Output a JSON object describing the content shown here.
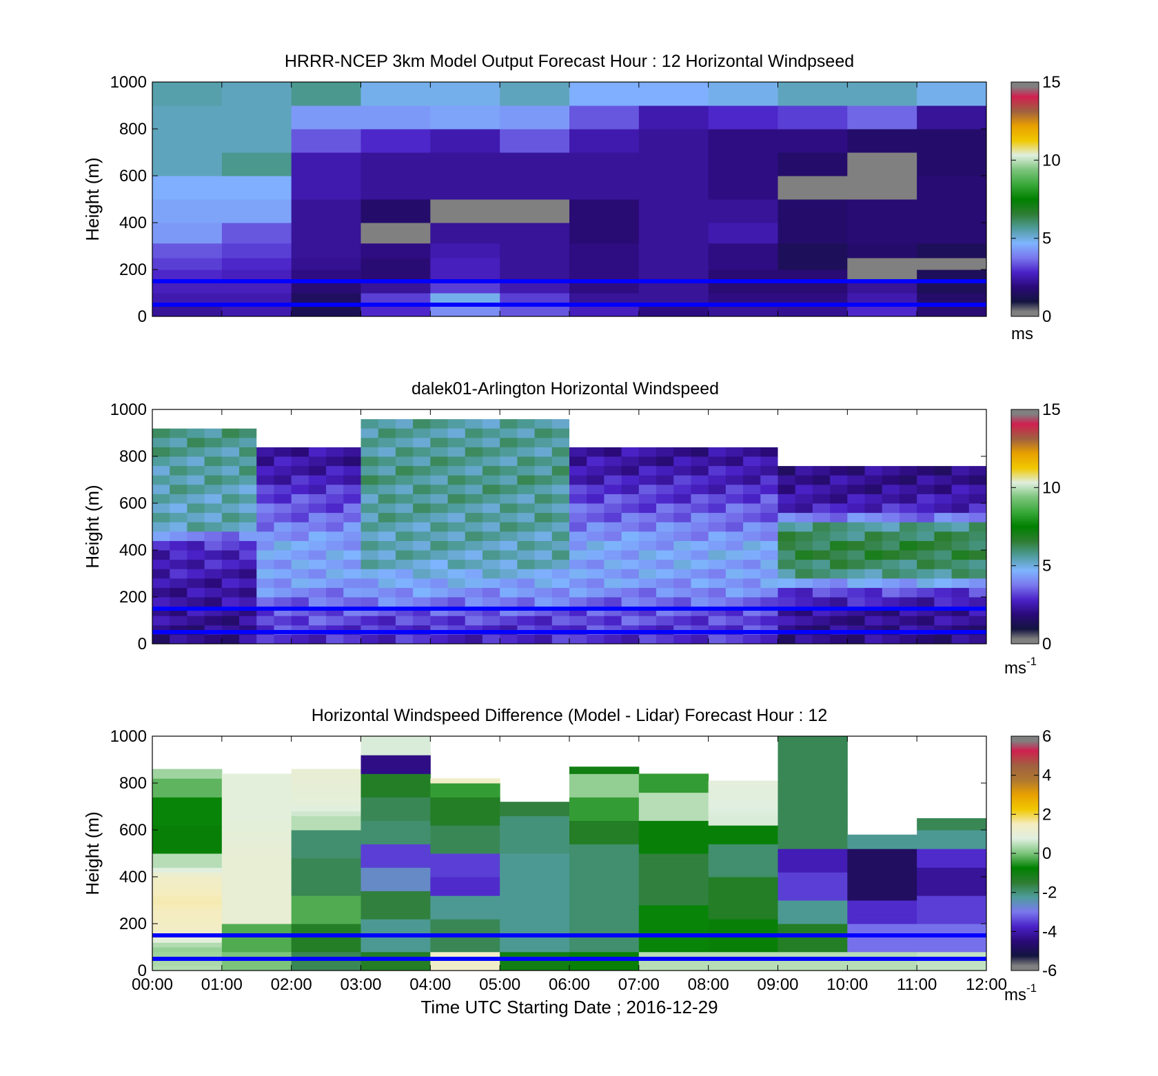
{
  "colors": {
    "ws_scale": [
      "#808080",
      "#141440",
      "#2a0a78",
      "#4a22c8",
      "#7a78ee",
      "#7fb4ff",
      "#4f9c9c",
      "#2e7d32",
      "#008000",
      "#3aa93a",
      "#7cc47c",
      "#e0efe0",
      "#f0c800",
      "#e8a000",
      "#a06040",
      "#d02050",
      "#808080"
    ],
    "diff_scale": [
      "#808080",
      "#141440",
      "#2a0a78",
      "#4a22c8",
      "#7a78ee",
      "#4f9c9c",
      "#2e7d32",
      "#008000",
      "#7cc47c",
      "#e0efe0",
      "#f5edc0",
      "#f0c800",
      "#e8a000",
      "#b07830",
      "#a06040",
      "#d02050",
      "#808080"
    ],
    "guide_line": "#0000ff",
    "missing": "#ffffff"
  },
  "xticks": [
    "00:00",
    "01:00",
    "02:00",
    "03:00",
    "04:00",
    "05:00",
    "06:00",
    "07:00",
    "08:00",
    "09:00",
    "10:00",
    "11:00",
    "12:00"
  ],
  "yticks": [
    "0",
    "200",
    "400",
    "600",
    "800",
    "1000"
  ],
  "chart_data": [
    {
      "type": "heatmap",
      "title": "HRRR-NCEP 3km Model Output   Forecast Hour : 12 Horizontal Windpseed",
      "ylabel": "Height (m)",
      "ylim": [
        0,
        1000
      ],
      "xlim": [
        0,
        12
      ],
      "colorbar": {
        "ticks": [
          "0",
          "5",
          "10",
          "15"
        ],
        "range": [
          0,
          15
        ],
        "unit_label": "ms"
      },
      "guide_lines_m": [
        150,
        50
      ],
      "heights_m": [
        25,
        75,
        125,
        175,
        225,
        275,
        350,
        450,
        550,
        650,
        750,
        850,
        950
      ],
      "columns_hours": [
        0,
        1,
        2,
        3,
        4,
        5,
        6,
        7,
        8,
        9,
        10,
        11
      ],
      "values": [
        [
          1.5,
          1.8,
          0.4,
          2.2,
          3.6,
          2.8,
          2.0,
          1.2,
          1.5,
          1.4,
          2.2,
          1.0
        ],
        [
          1.8,
          1.8,
          0.6,
          2.5,
          4.5,
          2.5,
          1.5,
          1.5,
          1.2,
          1.2,
          1.8,
          0.8
        ],
        [
          2.0,
          2.0,
          1.0,
          1.5,
          2.5,
          1.8,
          1.2,
          1.5,
          1.0,
          1.0,
          1.5,
          0.5
        ],
        [
          2.2,
          2.0,
          1.2,
          1.0,
          2.0,
          1.5,
          1.2,
          1.5,
          1.0,
          1.0,
          0.0,
          0.5
        ],
        [
          2.5,
          2.2,
          1.4,
          1.0,
          2.0,
          1.5,
          1.2,
          1.5,
          1.2,
          0.5,
          0.0,
          0.0
        ],
        [
          2.8,
          2.5,
          1.5,
          1.2,
          1.8,
          1.5,
          1.2,
          1.5,
          1.2,
          0.5,
          0.8,
          0.5
        ],
        [
          3.8,
          2.8,
          1.5,
          0.0,
          1.5,
          1.5,
          1.0,
          1.5,
          1.8,
          0.8,
          1.0,
          1.0
        ],
        [
          4.0,
          4.0,
          1.5,
          0.8,
          0.0,
          0.0,
          1.0,
          1.5,
          1.5,
          0.8,
          1.0,
          1.0
        ],
        [
          4.2,
          4.2,
          1.8,
          1.5,
          1.5,
          1.5,
          1.5,
          1.5,
          1.2,
          0.0,
          0.0,
          1.0
        ],
        [
          5.0,
          5.5,
          1.8,
          1.5,
          1.5,
          1.5,
          1.5,
          1.5,
          1.2,
          0.8,
          0.0,
          0.8
        ],
        [
          5.0,
          5.0,
          2.8,
          2.2,
          1.8,
          2.8,
          1.8,
          1.5,
          1.2,
          1.2,
          0.8,
          0.8
        ],
        [
          5.0,
          5.0,
          3.8,
          3.8,
          4.0,
          3.8,
          2.8,
          1.8,
          2.2,
          2.5,
          3.0,
          1.5
        ],
        [
          5.2,
          5.0,
          5.5,
          4.5,
          4.5,
          5.0,
          4.2,
          4.2,
          4.5,
          5.0,
          5.0,
          4.5
        ]
      ]
    },
    {
      "type": "heatmap",
      "title": "dalek01-Arlington  Horizontal Windspeed",
      "ylabel": "Height (m)",
      "ylim": [
        0,
        1000
      ],
      "xlim": [
        0,
        12
      ],
      "colorbar": {
        "ticks": [
          "0",
          "5",
          "10",
          "15"
        ],
        "range": [
          0,
          15
        ],
        "unit_label": "ms-1"
      },
      "guide_lines_m": [
        150,
        50
      ],
      "heights_m": [
        20,
        60,
        100,
        140,
        180,
        220,
        260,
        300,
        340,
        380,
        420,
        460,
        500,
        540,
        580,
        620,
        660,
        700,
        740,
        780,
        820,
        860,
        900,
        940,
        980
      ],
      "columns_hours": [
        0.0,
        0.25,
        0.5,
        0.75,
        1.0,
        1.25,
        1.5,
        1.75,
        2.0,
        2.25,
        2.5,
        2.75,
        3.0,
        3.25,
        3.5,
        3.75,
        4.0,
        4.25,
        4.5,
        4.75,
        5.0,
        5.25,
        5.5,
        5.75,
        6.0,
        6.25,
        6.5,
        6.75,
        7.0,
        7.25,
        7.5,
        7.75,
        8.0,
        8.25,
        8.5,
        8.75,
        9.0,
        9.25,
        9.5,
        9.75,
        10.0,
        10.25,
        10.5,
        10.75,
        11.0,
        11.25,
        11.5,
        11.75
      ],
      "profile_note_values": "piecewise profiles per time bin: [height_m, windspeed]; windspeed -1 = no data, 0 = gray flag",
      "profiles": {
        "early": [
          [
            0,
            1.2
          ],
          [
            150,
            1.5
          ],
          [
            300,
            1.8
          ],
          [
            400,
            2.0
          ],
          [
            450,
            3.0
          ],
          [
            500,
            5.0
          ],
          [
            700,
            5.2
          ],
          [
            880,
            5.5
          ],
          [
            940,
            -1
          ]
        ],
        "mid_a": [
          [
            0,
            2.0
          ],
          [
            100,
            2.5
          ],
          [
            200,
            3.5
          ],
          [
            300,
            4.5
          ],
          [
            350,
            5.0
          ],
          [
            700,
            5.5
          ],
          [
            900,
            5.3
          ],
          [
            1000,
            -1
          ]
        ],
        "mid_b": [
          [
            0,
            2.2
          ],
          [
            150,
            2.8
          ],
          [
            250,
            3.8
          ],
          [
            400,
            4.2
          ],
          [
            550,
            3.0
          ],
          [
            700,
            2.0
          ],
          [
            800,
            1.5
          ],
          [
            900,
            -1
          ]
        ],
        "late": [
          [
            0,
            1.2
          ],
          [
            150,
            1.5
          ],
          [
            220,
            2.5
          ],
          [
            300,
            5.5
          ],
          [
            400,
            6.5
          ],
          [
            500,
            5.5
          ],
          [
            560,
            2.2
          ],
          [
            650,
            1.5
          ],
          [
            750,
            1.2
          ],
          [
            800,
            -1
          ]
        ]
      }
    },
    {
      "type": "heatmap",
      "title": "Horizontal Windspeed Difference (Model - Lidar) Forecast Hour : 12",
      "ylabel": "Height (m)",
      "xlabel": "Time UTC  Starting Date ; 2016-12-29",
      "ylim": [
        0,
        1000
      ],
      "xlim": [
        0,
        12
      ],
      "colorbar": {
        "ticks": [
          "-6",
          "-4",
          "-2",
          "0",
          "2",
          "4",
          "6"
        ],
        "range": [
          -6,
          6
        ],
        "unit_label": "ms-1"
      },
      "guide_lines_m": [
        150,
        50
      ],
      "columns_hours": [
        0,
        1,
        2,
        3,
        4,
        5,
        6,
        7,
        8,
        9,
        10,
        11
      ],
      "tops_m": [
        860,
        840,
        860,
        1000,
        820,
        720,
        870,
        840,
        810,
        1000,
        580,
        650
      ],
      "profiles": [
        [
          [
            0,
            0.5
          ],
          [
            100,
            0.2
          ],
          [
            150,
            1.5
          ],
          [
            300,
            1.8
          ],
          [
            400,
            1.5
          ],
          [
            450,
            0.5
          ],
          [
            550,
            -1.0
          ],
          [
            700,
            -0.8
          ],
          [
            780,
            -0.2
          ],
          [
            860,
            0.3
          ]
        ],
        [
          [
            0,
            0.0
          ],
          [
            150,
            -0.3
          ],
          [
            250,
            1.2
          ],
          [
            450,
            1.2
          ],
          [
            650,
            1.0
          ],
          [
            840,
            1.0
          ]
        ],
        [
          [
            0,
            -2.0
          ],
          [
            150,
            -1.5
          ],
          [
            250,
            -0.3
          ],
          [
            400,
            -2.0
          ],
          [
            550,
            -2.2
          ],
          [
            650,
            0.5
          ],
          [
            700,
            1.0
          ],
          [
            840,
            1.2
          ]
        ],
        [
          [
            0,
            -1.5
          ],
          [
            150,
            -2.5
          ],
          [
            300,
            -1.8
          ],
          [
            400,
            -3.0
          ],
          [
            500,
            -4.0
          ],
          [
            600,
            -2.2
          ],
          [
            700,
            -2.0
          ],
          [
            800,
            -1.5
          ],
          [
            880,
            -5.0
          ],
          [
            950,
            0.8
          ],
          [
            1000,
            0.8
          ]
        ],
        [
          [
            0,
            1.5
          ],
          [
            150,
            -2.0
          ],
          [
            300,
            -2.5
          ],
          [
            350,
            -4.2
          ],
          [
            450,
            -4.0
          ],
          [
            550,
            -2.0
          ],
          [
            700,
            -1.5
          ],
          [
            780,
            -0.5
          ],
          [
            820,
            1.5
          ]
        ],
        [
          [
            0,
            -1.2
          ],
          [
            150,
            -2.5
          ],
          [
            400,
            -2.5
          ],
          [
            600,
            -2.3
          ],
          [
            720,
            -1.8
          ]
        ],
        [
          [
            0,
            -1.0
          ],
          [
            150,
            -2.2
          ],
          [
            500,
            -2.2
          ],
          [
            600,
            -1.5
          ],
          [
            700,
            -0.5
          ],
          [
            800,
            0.2
          ],
          [
            870,
            -1.2
          ]
        ],
        [
          [
            0,
            0.5
          ],
          [
            150,
            -0.8
          ],
          [
            400,
            -1.8
          ],
          [
            600,
            -1.0
          ],
          [
            700,
            0.5
          ],
          [
            840,
            -0.5
          ]
        ],
        [
          [
            0,
            0.5
          ],
          [
            150,
            -1.0
          ],
          [
            300,
            -1.5
          ],
          [
            500,
            -2.2
          ],
          [
            600,
            -1.0
          ],
          [
            650,
            0.8
          ],
          [
            810,
            1.0
          ]
        ],
        [
          [
            0,
            0.5
          ],
          [
            150,
            -1.5
          ],
          [
            250,
            -2.5
          ],
          [
            350,
            -4.0
          ],
          [
            500,
            -4.5
          ],
          [
            530,
            -2.0
          ]
        ],
        [
          [
            0,
            0.5
          ],
          [
            150,
            -3.5
          ],
          [
            250,
            -4.2
          ],
          [
            350,
            -5.5
          ],
          [
            500,
            -5.5
          ],
          [
            560,
            -2.5
          ]
        ],
        [
          [
            0,
            0.6
          ],
          [
            150,
            -3.5
          ],
          [
            250,
            -4.0
          ],
          [
            400,
            -4.8
          ],
          [
            500,
            -4.2
          ],
          [
            560,
            -2.5
          ],
          [
            650,
            -2.0
          ]
        ]
      ]
    }
  ]
}
